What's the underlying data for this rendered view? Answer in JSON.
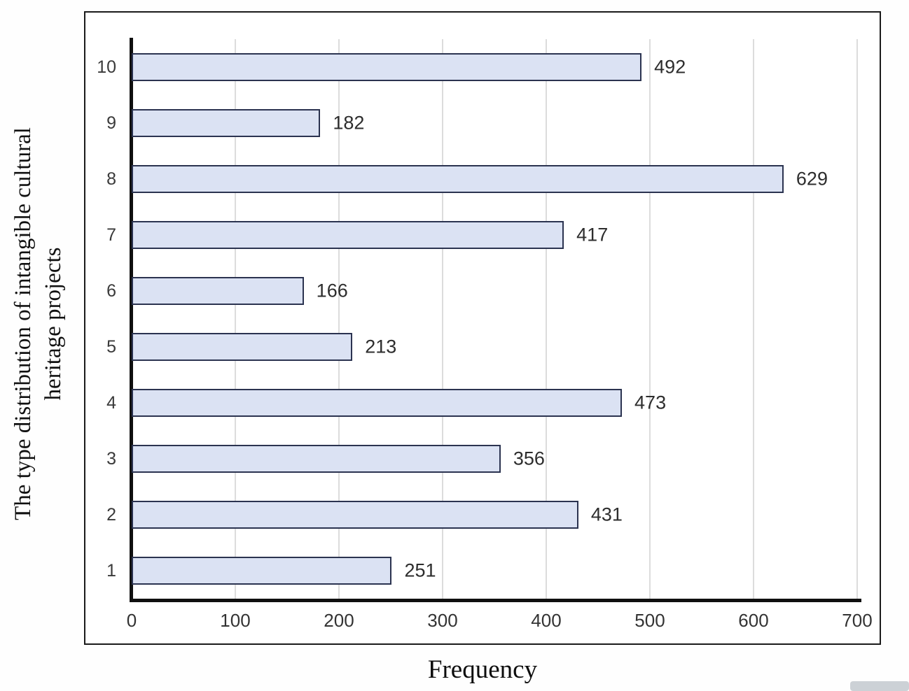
{
  "chart_data": {
    "type": "bar",
    "orientation": "horizontal",
    "title": "",
    "xlabel": "Frequency",
    "ylabel": "The type distribution of intangible cultural heritage projects",
    "categories": [
      "1",
      "2",
      "3",
      "4",
      "5",
      "6",
      "7",
      "8",
      "9",
      "10"
    ],
    "values": [
      251,
      431,
      356,
      473,
      213,
      166,
      417,
      629,
      182,
      492
    ],
    "xlim": [
      0,
      700
    ],
    "xticks": [
      0,
      100,
      200,
      300,
      400,
      500,
      600,
      700
    ],
    "grid": true,
    "legend": "none",
    "colors": {
      "bar_fill": "#dbe2f3",
      "bar_border": "#2b3350",
      "gridline": "#dcdcdc",
      "axis": "#101010",
      "label_text": "#2d2d2d"
    }
  }
}
